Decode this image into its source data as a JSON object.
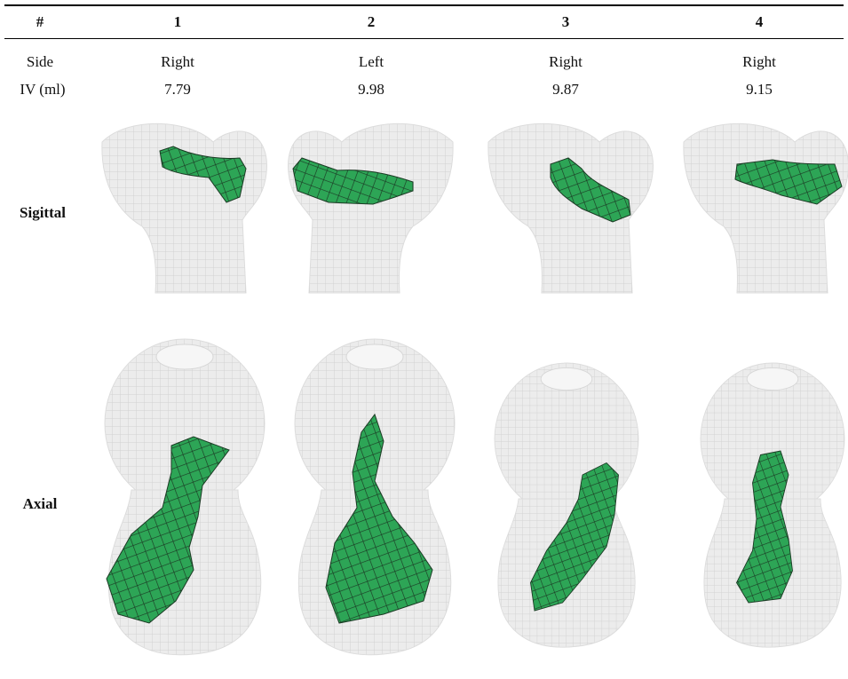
{
  "table": {
    "header": [
      "#",
      "1",
      "2",
      "3",
      "4"
    ],
    "rows": [
      [
        "Side",
        "Right",
        "Left",
        "Right",
        "Right"
      ],
      [
        "IV (ml)",
        "7.79",
        "9.98",
        "9.87",
        "9.15"
      ]
    ],
    "image_rows": [
      "Sigittal",
      "Axial"
    ]
  }
}
